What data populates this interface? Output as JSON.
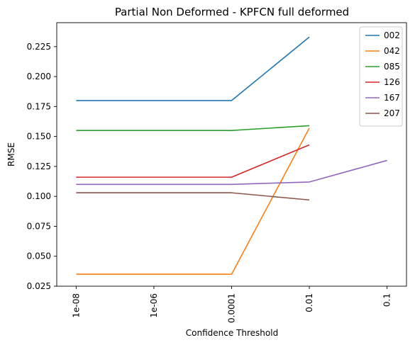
{
  "chart_data": {
    "type": "line",
    "title": "Partial Non Deformed - KPFCN full deformed",
    "xlabel": "Confidence Threshold",
    "ylabel": "RMSE",
    "x_ticks": [
      "1e-08",
      "1e-06",
      "0.0001",
      "0.01",
      "0.1"
    ],
    "x_tick_positions": [
      0,
      1,
      2,
      3,
      4
    ],
    "xlim": [
      -0.25,
      4.25
    ],
    "ylim": [
      0.025,
      0.245
    ],
    "y_ticks": [
      0.025,
      0.05,
      0.075,
      0.1,
      0.125,
      0.15,
      0.175,
      0.2,
      0.225
    ],
    "y_tick_labels": [
      "0.025",
      "0.050",
      "0.075",
      "0.100",
      "0.125",
      "0.150",
      "0.175",
      "0.200",
      "0.225"
    ],
    "grid": false,
    "legend_position": "top-right",
    "series": [
      {
        "name": "002",
        "color": "#1f77b4",
        "x": [
          0,
          2,
          3
        ],
        "values": [
          0.18,
          0.18,
          0.233
        ]
      },
      {
        "name": "042",
        "color": "#ff7f0e",
        "x": [
          0,
          2,
          3
        ],
        "values": [
          0.035,
          0.035,
          0.157
        ]
      },
      {
        "name": "085",
        "color": "#2ca02c",
        "x": [
          0,
          2,
          3
        ],
        "values": [
          0.155,
          0.155,
          0.159
        ]
      },
      {
        "name": "126",
        "color": "#d62728",
        "x": [
          0,
          2,
          3
        ],
        "values": [
          0.116,
          0.116,
          0.143
        ]
      },
      {
        "name": "167",
        "color": "#9467bd",
        "x": [
          0,
          2,
          3,
          4
        ],
        "values": [
          0.11,
          0.11,
          0.112,
          0.13
        ]
      },
      {
        "name": "207",
        "color": "#8c564b",
        "x": [
          0,
          2,
          3
        ],
        "values": [
          0.103,
          0.103,
          0.097
        ]
      }
    ]
  }
}
